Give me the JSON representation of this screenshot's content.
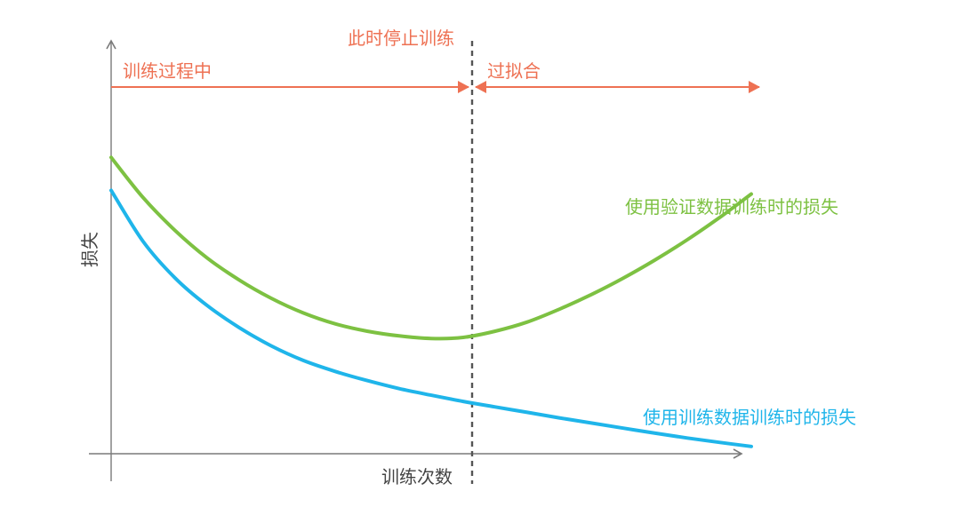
{
  "labels": {
    "stop_training": "此时停止训练",
    "during_training": "训练过程中",
    "overfitting": "过拟合",
    "y_axis": "损失",
    "x_axis": "训练次数"
  },
  "series": [
    {
      "name": "使用验证数据训练时的损失",
      "color": "#7dc142"
    },
    {
      "name": "使用训练数据训练时的损失",
      "color": "#1fb5ea"
    }
  ],
  "colors": {
    "annotation": "#ee7153",
    "axis": "#7a7a7a",
    "stop_line": "#555555",
    "validation": "#7dc142",
    "training": "#1fb5ea"
  },
  "chart_data": {
    "type": "line",
    "note_free": true,
    "title": "",
    "xlabel": "训练次数",
    "ylabel": "损失",
    "grid": false,
    "series": [
      {
        "name": "使用验证数据训练时的损失",
        "x": [
          0,
          5,
          10,
          15,
          20,
          25,
          30,
          35,
          40,
          45,
          50,
          55,
          60,
          65,
          70,
          75,
          80,
          85,
          90,
          95,
          100
        ],
        "y": [
          8.1,
          7.0,
          6.1,
          5.35,
          4.75,
          4.25,
          3.85,
          3.55,
          3.35,
          3.22,
          3.15,
          3.18,
          3.35,
          3.6,
          3.95,
          4.35,
          4.8,
          5.3,
          5.85,
          6.45,
          7.1
        ]
      },
      {
        "name": "使用训练数据训练时的损失",
        "x": [
          0,
          5,
          10,
          15,
          20,
          25,
          30,
          35,
          40,
          45,
          50,
          55,
          60,
          65,
          70,
          75,
          80,
          85,
          90,
          95,
          100
        ],
        "y": [
          7.2,
          5.8,
          4.8,
          4.05,
          3.45,
          2.95,
          2.55,
          2.25,
          2.0,
          1.78,
          1.6,
          1.43,
          1.28,
          1.13,
          0.98,
          0.84,
          0.7,
          0.56,
          0.43,
          0.31,
          0.2
        ]
      }
    ],
    "stop_point_x": 58,
    "xlim": [
      0,
      100
    ],
    "ylim": [
      0,
      10
    ]
  }
}
